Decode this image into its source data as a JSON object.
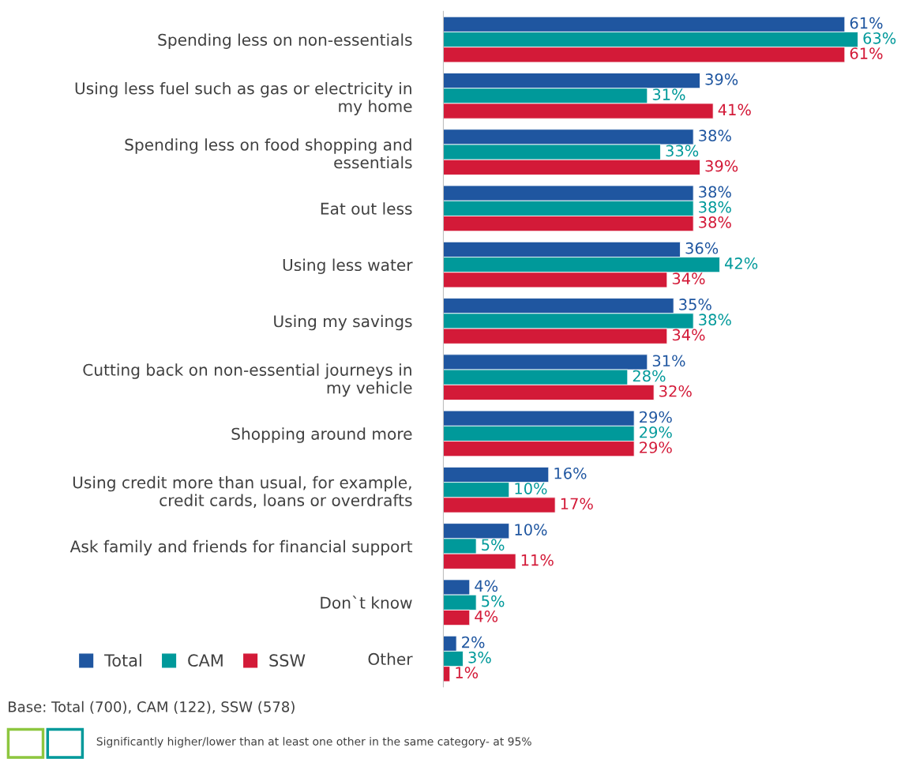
{
  "chart_data": {
    "type": "bar",
    "orientation": "horizontal",
    "legend": "bottom left",
    "grid": false,
    "categories": [
      "Spending less on non-essentials",
      "Using less fuel such as gas or electricity in\nmy home",
      "Spending less on food shopping and\nessentials",
      "Eat out less",
      "Using less water",
      "Using my savings",
      "Cutting back on non-essential journeys in\nmy vehicle",
      "Shopping around more",
      "Using credit more than usual, for example,\ncredit cards, loans or overdrafts",
      "Ask family and friends for financial support",
      "Don`t know",
      "Other"
    ],
    "series": [
      {
        "name": "Total",
        "color": "#1f56a0",
        "values": [
          61,
          39,
          38,
          38,
          36,
          35,
          31,
          29,
          16,
          10,
          4,
          2
        ],
        "value_labels": [
          "61%",
          "39%",
          "38%",
          "38%",
          "36%",
          "35%",
          "31%",
          "29%",
          "16%",
          "10%",
          "4%",
          "2%"
        ]
      },
      {
        "name": "CAM",
        "color": "#00999a",
        "values": [
          63,
          31,
          33,
          38,
          42,
          38,
          28,
          29,
          10,
          5,
          5,
          3
        ],
        "value_labels": [
          "63%",
          "31%",
          "33%",
          "38%",
          "42%",
          "38%",
          "28%",
          "29%",
          "10%",
          "5%",
          "5%",
          "3%"
        ]
      },
      {
        "name": "SSW",
        "color": "#d31a38",
        "values": [
          61,
          41,
          39,
          38,
          34,
          34,
          32,
          29,
          17,
          11,
          4,
          1
        ],
        "value_labels": [
          "61%",
          "41%",
          "39%",
          "38%",
          "34%",
          "34%",
          "32%",
          "29%",
          "17%",
          "11%",
          "4%",
          "1%"
        ]
      }
    ],
    "annotations": [
      "Base: Total (700), CAM (122), SSW (578)",
      "Significantly higher/lower than at least one other in the same category- at 95%"
    ]
  }
}
